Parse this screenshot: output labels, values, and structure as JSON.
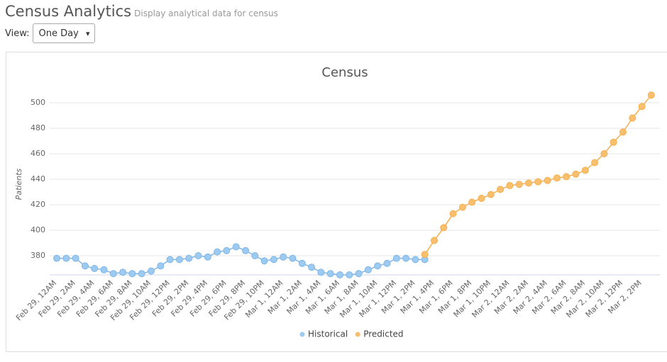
{
  "header": {
    "title": "Census Analytics",
    "subtitle": "Display analytical data for census"
  },
  "view": {
    "label": "View:",
    "selected": "One Day"
  },
  "chart_data": {
    "type": "line",
    "title": "Census",
    "ylabel": "Patients",
    "categories": [
      "Feb 29, 12AM",
      null,
      "Feb 29, 2AM",
      null,
      "Feb 29, 4AM",
      null,
      "Feb 29, 6AM",
      null,
      "Feb 29, 8AM",
      null,
      "Feb 29, 10AM",
      null,
      "Feb 29, 12PM",
      null,
      "Feb 29, 2PM",
      null,
      "Feb 29, 4PM",
      null,
      "Feb 29, 6PM",
      null,
      "Feb 29, 8PM",
      null,
      "Feb 29, 10PM",
      null,
      "Mar 1, 12AM",
      null,
      "Mar 1, 2AM",
      null,
      "Mar 1, 4AM",
      null,
      "Mar 1, 6AM",
      null,
      "Mar 1, 8AM",
      null,
      "Mar 1, 10AM",
      null,
      "Mar 1, 12PM",
      null,
      "Mar 1, 2PM",
      null,
      "Mar 1, 4PM",
      null,
      "Mar 1, 6PM",
      null,
      "Mar 1, 8PM",
      null,
      "Mar 1, 10PM",
      null,
      "Mar 2, 12AM",
      null,
      "Mar 2, 2AM",
      null,
      "Mar 2, 4AM",
      null,
      "Mar 2, 6AM",
      null,
      "Mar 2, 8AM",
      null,
      "Mar 2, 10AM",
      null,
      "Mar 2, 12PM",
      null,
      "Mar 2, 2PM",
      null
    ],
    "series": [
      {
        "name": "Historical",
        "color": "#9ccaf0",
        "stroke": "#7fb6e6",
        "values": [
          378,
          378,
          378,
          372,
          370,
          369,
          366,
          367,
          366,
          366,
          368,
          372,
          377,
          377,
          378,
          380,
          379,
          383,
          384,
          387,
          384,
          380,
          376,
          377,
          379,
          378,
          374,
          371,
          367,
          366,
          365,
          365,
          366,
          369,
          372,
          374,
          378,
          378,
          377,
          377,
          null,
          null,
          null,
          null,
          null,
          null,
          null,
          null,
          null,
          null,
          null,
          null,
          null,
          null,
          null,
          null,
          null,
          null,
          null,
          null,
          null,
          null,
          null,
          null
        ]
      },
      {
        "name": "Predicted",
        "color": "#f8c06e",
        "stroke": "#f4ae4e",
        "values": [
          null,
          null,
          null,
          null,
          null,
          null,
          null,
          null,
          null,
          null,
          null,
          null,
          null,
          null,
          null,
          null,
          null,
          null,
          null,
          null,
          null,
          null,
          null,
          null,
          null,
          null,
          null,
          null,
          null,
          null,
          null,
          null,
          null,
          null,
          null,
          null,
          null,
          null,
          null,
          381,
          392,
          402,
          413,
          418,
          422,
          425,
          428,
          432,
          435,
          436,
          437,
          438,
          439,
          441,
          442,
          444,
          447,
          453,
          460,
          469,
          477,
          488,
          497,
          506
        ]
      }
    ],
    "ylim": [
      365,
      510
    ],
    "yticks": [
      380,
      400,
      420,
      440,
      460,
      480,
      500
    ],
    "grid": true,
    "legend": "bottom"
  }
}
